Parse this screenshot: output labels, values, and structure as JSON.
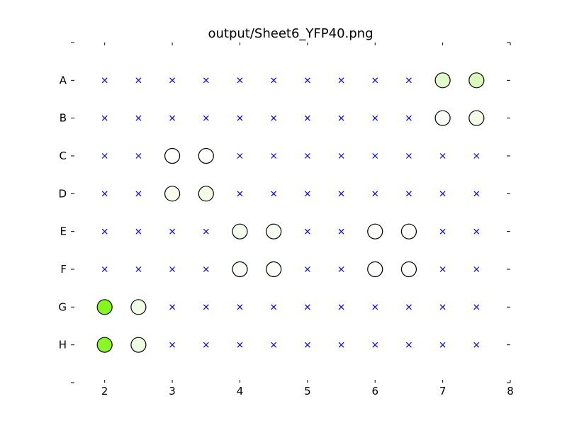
{
  "chart_data": {
    "type": "scatter",
    "title": "output/Sheet6_YFP40.png",
    "xlabel": "",
    "ylabel": "",
    "xlim": [
      1.5,
      8.0
    ],
    "x_ticks": [
      2,
      3,
      4,
      5,
      6,
      7,
      8
    ],
    "x_tick_labels": [
      "2",
      "3",
      "4",
      "5",
      "6",
      "7",
      "8"
    ],
    "rows": [
      "A",
      "B",
      "C",
      "D",
      "E",
      "F",
      "G",
      "H"
    ],
    "columns": [
      2.0,
      2.5,
      3.0,
      3.5,
      4.0,
      4.5,
      5.0,
      5.5,
      6.0,
      6.5,
      7.0,
      7.5
    ],
    "grid": false,
    "legend": "none",
    "colors": {
      "empty_marker": "#0000ff",
      "circle_edge": "#000000"
    },
    "filled": [
      {
        "row": "A",
        "x": 7.0,
        "color": "#e1fbcb"
      },
      {
        "row": "A",
        "x": 7.5,
        "color": "#dafbb9"
      },
      {
        "row": "B",
        "x": 7.0,
        "color": "#fbfef8"
      },
      {
        "row": "B",
        "x": 7.5,
        "color": "#f5fde9"
      },
      {
        "row": "C",
        "x": 3.0,
        "color": "#fefffd"
      },
      {
        "row": "C",
        "x": 3.5,
        "color": "#fefffd"
      },
      {
        "row": "D",
        "x": 3.0,
        "color": "#f8fdee"
      },
      {
        "row": "D",
        "x": 3.5,
        "color": "#f3fde6"
      },
      {
        "row": "E",
        "x": 4.0,
        "color": "#f5fdec"
      },
      {
        "row": "E",
        "x": 4.5,
        "color": "#f7fdf0"
      },
      {
        "row": "E",
        "x": 6.0,
        "color": "#fefffd"
      },
      {
        "row": "E",
        "x": 6.5,
        "color": "#fefffd"
      },
      {
        "row": "F",
        "x": 4.0,
        "color": "#fcfef9"
      },
      {
        "row": "F",
        "x": 4.5,
        "color": "#fcfef9"
      },
      {
        "row": "F",
        "x": 6.0,
        "color": "#fefffd"
      },
      {
        "row": "F",
        "x": 6.5,
        "color": "#fdfefb"
      },
      {
        "row": "G",
        "x": 2.0,
        "color": "#85f71e"
      },
      {
        "row": "G",
        "x": 2.5,
        "color": "#f1fce6"
      },
      {
        "row": "H",
        "x": 2.0,
        "color": "#8af826"
      },
      {
        "row": "H",
        "x": 2.5,
        "color": "#eefce2"
      }
    ]
  }
}
